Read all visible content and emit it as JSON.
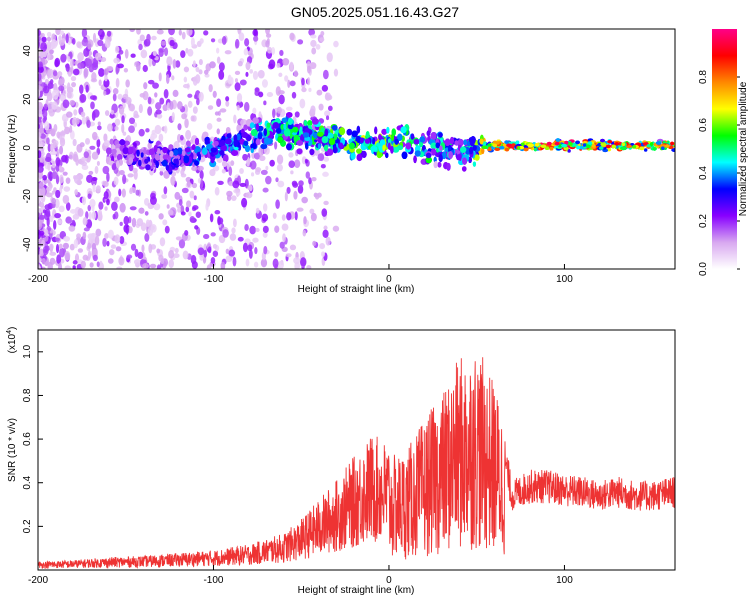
{
  "title": "GN05.2025.051.16.43.G27",
  "chart_data": [
    {
      "type": "heatmap",
      "xlabel": "Height of straight line (km)",
      "ylabel": "Frequency (Hz)",
      "xlim": [
        -200,
        163
      ],
      "ylim": [
        -50,
        49
      ],
      "xticks": [
        "-200",
        "-100",
        "0",
        "100"
      ],
      "yticks": [
        "-40",
        "-20",
        "0",
        "20",
        "40"
      ],
      "colorbar": {
        "label": "Normalized spectral amplitude",
        "range": [
          0,
          1
        ],
        "ticks": [
          "0.0",
          "0.2",
          "0.4",
          "0.6",
          "0.8"
        ],
        "colormap": [
          "#ffffff",
          "#d8a8f0",
          "#8800ff",
          "#0000ff",
          "#00ffff",
          "#00ff00",
          "#ffff00",
          "#ff8800",
          "#ff0000",
          "#ff0088"
        ]
      },
      "ridge": [
        {
          "x": -200,
          "y": 0,
          "amp": 0.15
        },
        {
          "x": -160,
          "y": -2,
          "amp": 0.2
        },
        {
          "x": -140,
          "y": -3,
          "amp": 0.3
        },
        {
          "x": -120,
          "y": -4,
          "amp": 0.35
        },
        {
          "x": -100,
          "y": -1,
          "amp": 0.4
        },
        {
          "x": -80,
          "y": 4,
          "amp": 0.45
        },
        {
          "x": -65,
          "y": 8,
          "amp": 0.5
        },
        {
          "x": -50,
          "y": 5,
          "amp": 0.5
        },
        {
          "x": -35,
          "y": 4,
          "amp": 0.55
        },
        {
          "x": -20,
          "y": 2,
          "amp": 0.6
        },
        {
          "x": -5,
          "y": 1,
          "amp": 0.6
        },
        {
          "x": 10,
          "y": 3,
          "amp": 0.55
        },
        {
          "x": 25,
          "y": 0,
          "amp": 0.5
        },
        {
          "x": 45,
          "y": -2,
          "amp": 0.45
        },
        {
          "x": 55,
          "y": 1,
          "amp": 0.8
        },
        {
          "x": 80,
          "y": 1,
          "amp": 0.9
        },
        {
          "x": 120,
          "y": 1,
          "amp": 0.9
        },
        {
          "x": 163,
          "y": 1,
          "amp": 0.85
        }
      ]
    },
    {
      "type": "line",
      "xlabel": "Height of straight line (km)",
      "ylabel": "SNR (10 * v/v)",
      "yexponent_label": "(x10",
      "yexponent_power": "4",
      "yexponent_close": ")",
      "xlim": [
        -200,
        163
      ],
      "ylim": [
        0,
        11000
      ],
      "xticks": [
        "-200",
        "-100",
        "0",
        "100"
      ],
      "yticks": [
        "0.2",
        "0.4",
        "0.6",
        "0.8",
        "1.0"
      ],
      "color": "#ee3333",
      "series": [
        {
          "x": [
            -200,
            -180,
            -160,
            -140,
            -120,
            -100,
            -80,
            -60,
            -50,
            -40,
            -30,
            -20,
            -10,
            0,
            10,
            20,
            30,
            40,
            50,
            60,
            66,
            70,
            80,
            90,
            100,
            110,
            120,
            130,
            140,
            150,
            163
          ],
          "y": [
            300,
            350,
            450,
            500,
            600,
            700,
            900,
            1300,
            1800,
            2500,
            3200,
            4000,
            4800,
            4500,
            4800,
            6000,
            7000,
            8500,
            9000,
            7500,
            6000,
            4000,
            4500,
            4500,
            4300,
            4200,
            4000,
            4200,
            4000,
            4000,
            4200
          ]
        }
      ]
    }
  ]
}
